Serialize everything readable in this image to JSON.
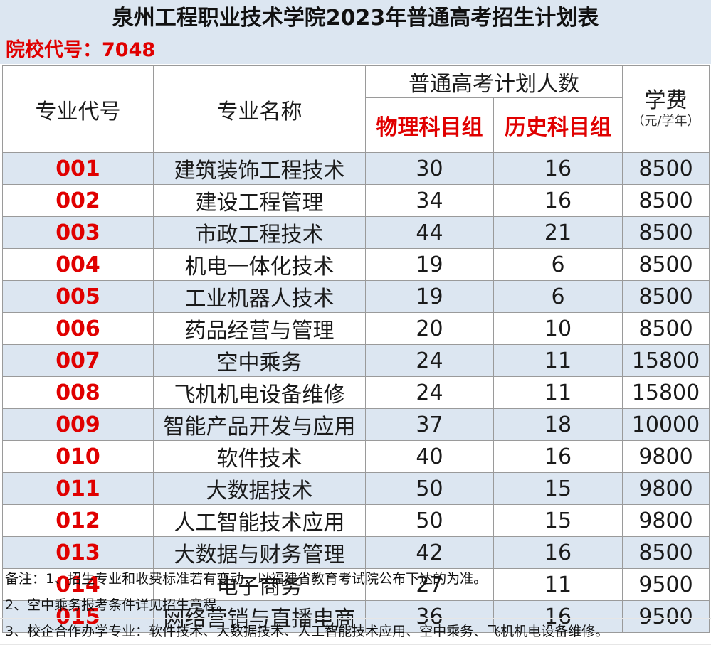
{
  "title": "泉州工程职业技术学院2023年普通高考招生计划表",
  "school_code": "院校代号：7048",
  "headers": {
    "major_code": "专业代号",
    "major_name": "专业名称",
    "plan_group": "普通高考计划人数",
    "physics": "物理科目组",
    "history": "历史科目组",
    "fee": "学费",
    "fee_unit": "（元/学年）"
  },
  "rows": [
    {
      "code": "001",
      "name": "建筑装饰工程技术",
      "physics": "30",
      "history": "16",
      "fee": "8500"
    },
    {
      "code": "002",
      "name": "建设工程管理",
      "physics": "34",
      "history": "16",
      "fee": "8500"
    },
    {
      "code": "003",
      "name": "市政工程技术",
      "physics": "44",
      "history": "21",
      "fee": "8500"
    },
    {
      "code": "004",
      "name": "机电一体化技术",
      "physics": "19",
      "history": "6",
      "fee": "8500"
    },
    {
      "code": "005",
      "name": "工业机器人技术",
      "physics": "19",
      "history": "6",
      "fee": "8500"
    },
    {
      "code": "006",
      "name": "药品经营与管理",
      "physics": "20",
      "history": "10",
      "fee": "8500"
    },
    {
      "code": "007",
      "name": "空中乘务",
      "physics": "24",
      "history": "11",
      "fee": "15800"
    },
    {
      "code": "008",
      "name": "飞机机电设备维修",
      "physics": "24",
      "history": "11",
      "fee": "15800"
    },
    {
      "code": "009",
      "name": "智能产品开发与应用",
      "physics": "37",
      "history": "18",
      "fee": "10000"
    },
    {
      "code": "010",
      "name": "软件技术",
      "physics": "40",
      "history": "16",
      "fee": "9800"
    },
    {
      "code": "011",
      "name": "大数据技术",
      "physics": "50",
      "history": "15",
      "fee": "9800"
    },
    {
      "code": "012",
      "name": "人工智能技术应用",
      "physics": "50",
      "history": "15",
      "fee": "9800"
    },
    {
      "code": "013",
      "name": "大数据与财务管理",
      "physics": "42",
      "history": "16",
      "fee": "8500"
    },
    {
      "code": "014",
      "name": "电子商务",
      "physics": "27",
      "history": "11",
      "fee": "9500"
    },
    {
      "code": "015",
      "name": "网络营销与直播电商",
      "physics": "36",
      "history": "16",
      "fee": "9500"
    }
  ],
  "notes": [
    "备注：1、招生专业和收费标准若有变动，以福建省教育考试院公布下达的为准。",
    "2、空中乘务报考条件详见招生章程。",
    "3、校企合作办学专业：软件技术、大数据技术、人工智能技术应用、空中乘务、飞机机电设备维修。"
  ],
  "colors": {
    "accent_red": "#e00000",
    "band_blue": "#dce6f1",
    "grid": "#9a9a9a"
  }
}
